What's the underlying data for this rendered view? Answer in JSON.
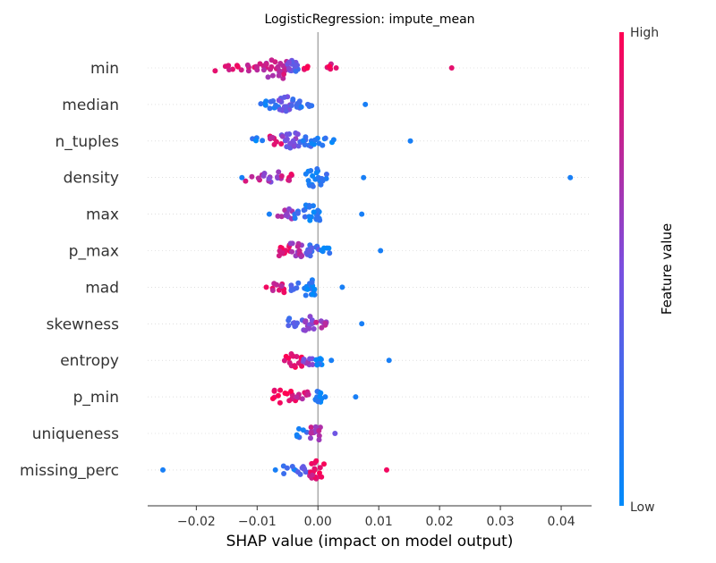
{
  "chart_data": {
    "type": "scatter",
    "title": "LogisticRegression: impute_mean",
    "xlabel": "SHAP value (impact on model output)",
    "colorbar": {
      "label": "Feature value",
      "high": "High",
      "low": "Low",
      "high_color": "#ff0052",
      "low_color": "#008bfb"
    },
    "xlim": [
      -0.028,
      0.045
    ],
    "xticks": [
      -0.02,
      -0.01,
      0.0,
      0.01,
      0.02,
      0.03,
      0.04
    ],
    "xtick_labels": [
      "−0.02",
      "−0.01",
      "0.00",
      "0.01",
      "0.02",
      "0.03",
      "0.04"
    ],
    "features": [
      {
        "name": "min",
        "clusters": [
          [
            -0.0175,
            -0.014,
            0.85,
            5
          ],
          [
            -0.014,
            -0.011,
            0.85,
            6
          ],
          [
            -0.011,
            -0.0085,
            0.8,
            8
          ],
          [
            -0.0085,
            -0.005,
            0.75,
            22
          ],
          [
            -0.005,
            -0.003,
            0.45,
            14
          ],
          [
            -0.004,
            -0.003,
            0.3,
            4
          ],
          [
            -0.0025,
            -0.0015,
            0.95,
            4
          ],
          [
            0.001,
            0.0025,
            0.9,
            6
          ]
        ],
        "outliers": [
          [
            0.003,
            0.9
          ],
          [
            0.022,
            0.9
          ]
        ]
      },
      {
        "name": "median",
        "clusters": [
          [
            -0.01,
            -0.0085,
            0.1,
            4
          ],
          [
            -0.0085,
            -0.0065,
            0.15,
            6
          ],
          [
            -0.0065,
            -0.0045,
            0.45,
            16
          ],
          [
            -0.0045,
            -0.003,
            0.3,
            10
          ],
          [
            -0.003,
            -0.001,
            0.15,
            6
          ]
        ],
        "outliers": [
          [
            0.0078,
            0.1
          ]
        ]
      },
      {
        "name": "n_tuples",
        "clusters": [
          [
            -0.011,
            -0.009,
            0.1,
            4
          ],
          [
            -0.008,
            -0.006,
            0.85,
            8
          ],
          [
            -0.006,
            -0.003,
            0.5,
            16
          ],
          [
            -0.003,
            -0.001,
            0.2,
            10
          ],
          [
            -0.001,
            0.0015,
            0.1,
            8
          ],
          [
            0.002,
            0.003,
            0.1,
            2
          ]
        ],
        "outliers": [
          [
            0.0152,
            0.1
          ]
        ]
      },
      {
        "name": "density",
        "clusters": [
          [
            -0.012,
            -0.009,
            0.85,
            5
          ],
          [
            -0.009,
            -0.006,
            0.6,
            10
          ],
          [
            -0.006,
            -0.004,
            0.9,
            6
          ],
          [
            -0.002,
            0.0005,
            0.1,
            18
          ],
          [
            0.0005,
            0.0015,
            0.15,
            4
          ]
        ],
        "outliers": [
          [
            -0.0125,
            0.1
          ],
          [
            0.0075,
            0.1
          ],
          [
            0.0415,
            0.1
          ]
        ]
      },
      {
        "name": "max",
        "clusters": [
          [
            -0.007,
            -0.004,
            0.6,
            10
          ],
          [
            -0.004,
            -0.002,
            0.2,
            8
          ],
          [
            -0.002,
            0.0005,
            0.1,
            18
          ]
        ],
        "outliers": [
          [
            -0.008,
            0.1
          ],
          [
            0.0072,
            0.1
          ]
        ]
      },
      {
        "name": "p_max",
        "clusters": [
          [
            -0.0065,
            -0.0045,
            0.95,
            12
          ],
          [
            -0.0045,
            -0.002,
            0.7,
            14
          ],
          [
            -0.002,
            0.0005,
            0.3,
            12
          ],
          [
            0.0005,
            0.002,
            0.1,
            6
          ]
        ],
        "outliers": [
          [
            0.0103,
            0.1
          ]
        ]
      },
      {
        "name": "mad",
        "clusters": [
          [
            -0.0075,
            -0.005,
            0.85,
            10
          ],
          [
            -0.0045,
            -0.003,
            0.35,
            6
          ],
          [
            -0.0025,
            -0.0005,
            0.1,
            16
          ]
        ],
        "outliers": [
          [
            -0.0085,
            0.95
          ],
          [
            0.004,
            0.1
          ]
        ]
      },
      {
        "name": "skewness",
        "clusters": [
          [
            -0.005,
            -0.0025,
            0.3,
            10
          ],
          [
            -0.0025,
            -0.0005,
            0.55,
            14
          ],
          [
            -0.0005,
            0.0015,
            0.7,
            8
          ]
        ],
        "outliers": [
          [
            0.0072,
            0.1
          ]
        ]
      },
      {
        "name": "entropy",
        "clusters": [
          [
            -0.0055,
            -0.0025,
            0.95,
            14
          ],
          [
            -0.0025,
            -0.0005,
            0.55,
            10
          ],
          [
            -0.0005,
            0.0008,
            0.1,
            8
          ]
        ],
        "outliers": [
          [
            0.0022,
            0.1
          ],
          [
            0.0117,
            0.1
          ]
        ]
      },
      {
        "name": "p_min",
        "clusters": [
          [
            -0.0075,
            -0.0035,
            0.95,
            14
          ],
          [
            -0.0035,
            -0.0015,
            0.8,
            8
          ],
          [
            -0.0008,
            0.0007,
            0.1,
            10
          ]
        ],
        "outliers": [
          [
            0.0012,
            0.1
          ],
          [
            0.0062,
            0.1
          ]
        ]
      },
      {
        "name": "uniqueness",
        "clusters": [
          [
            -0.0035,
            -0.0015,
            0.2,
            8
          ],
          [
            -0.0015,
            0.0005,
            0.7,
            12
          ]
        ],
        "outliers": [
          [
            0.0028,
            0.45
          ]
        ]
      },
      {
        "name": "missing_perc",
        "clusters": [
          [
            -0.006,
            -0.0035,
            0.15,
            6
          ],
          [
            -0.0035,
            -0.0015,
            0.4,
            8
          ],
          [
            -0.0015,
            0.001,
            0.9,
            18
          ]
        ],
        "outliers": [
          [
            -0.0255,
            0.1
          ],
          [
            -0.007,
            0.1
          ],
          [
            0.0113,
            0.95
          ]
        ]
      }
    ]
  }
}
